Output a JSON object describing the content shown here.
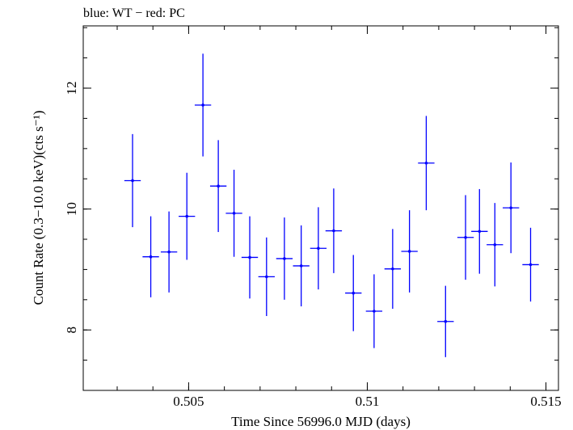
{
  "chart_data": {
    "type": "scatter",
    "title": "blue: WT − red: PC",
    "xlabel": "Time Since 56996.0 MJD (days)",
    "ylabel": "Count Rate (0.3−10.0 keV)(cts s⁻¹)",
    "xlim": [
      0.50205,
      0.51535
    ],
    "ylim": [
      7.0,
      13.03
    ],
    "x_ticks": [
      {
        "value": 0.505,
        "label": "0.505"
      },
      {
        "value": 0.51,
        "label": "0.51"
      },
      {
        "value": 0.515,
        "label": "0.515"
      }
    ],
    "y_ticks": [
      {
        "value": 8,
        "label": "8"
      },
      {
        "value": 10,
        "label": "10"
      },
      {
        "value": 12,
        "label": "12"
      }
    ],
    "x_minor_step": 0.001,
    "y_minor_step": 0.5,
    "grid": false,
    "series": [
      {
        "color": "#0000ff",
        "x_halfwidth": 0.00023,
        "points": [
          {
            "x": 0.50343,
            "y": 10.47,
            "err": 0.77
          },
          {
            "x": 0.50394,
            "y": 9.21,
            "err": 0.67
          },
          {
            "x": 0.50445,
            "y": 9.29,
            "err": 0.67
          },
          {
            "x": 0.50495,
            "y": 9.88,
            "err": 0.72
          },
          {
            "x": 0.5054,
            "y": 11.72,
            "err": 0.85
          },
          {
            "x": 0.50583,
            "y": 10.38,
            "err": 0.76
          },
          {
            "x": 0.50627,
            "y": 9.93,
            "err": 0.72
          },
          {
            "x": 0.50671,
            "y": 9.2,
            "err": 0.68
          },
          {
            "x": 0.50718,
            "y": 8.88,
            "err": 0.65
          },
          {
            "x": 0.50768,
            "y": 9.18,
            "err": 0.68
          },
          {
            "x": 0.50815,
            "y": 9.06,
            "err": 0.67
          },
          {
            "x": 0.50863,
            "y": 9.35,
            "err": 0.68
          },
          {
            "x": 0.50906,
            "y": 9.64,
            "err": 0.7
          },
          {
            "x": 0.50961,
            "y": 8.61,
            "err": 0.63
          },
          {
            "x": 0.51019,
            "y": 8.31,
            "err": 0.61
          },
          {
            "x": 0.51071,
            "y": 9.01,
            "err": 0.66
          },
          {
            "x": 0.51118,
            "y": 9.3,
            "err": 0.68
          },
          {
            "x": 0.51165,
            "y": 10.76,
            "err": 0.78
          },
          {
            "x": 0.51219,
            "y": 8.14,
            "err": 0.59
          },
          {
            "x": 0.51275,
            "y": 9.53,
            "err": 0.7
          },
          {
            "x": 0.51314,
            "y": 9.63,
            "err": 0.7
          },
          {
            "x": 0.51357,
            "y": 9.41,
            "err": 0.69
          },
          {
            "x": 0.51402,
            "y": 10.02,
            "err": 0.75
          },
          {
            "x": 0.51457,
            "y": 9.08,
            "err": 0.61
          }
        ]
      }
    ]
  }
}
